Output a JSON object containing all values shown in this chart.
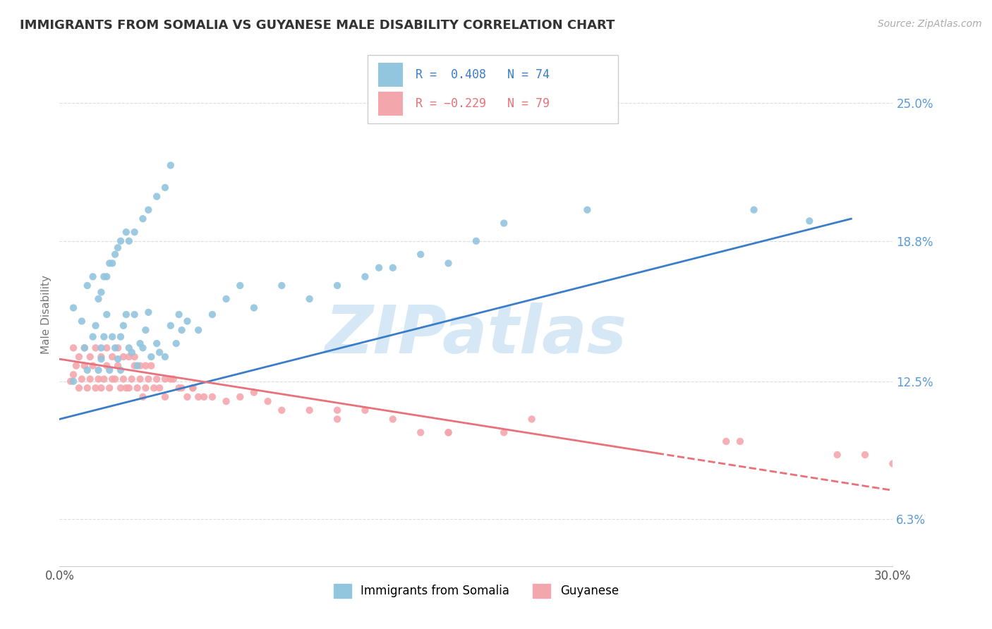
{
  "title": "IMMIGRANTS FROM SOMALIA VS GUYANESE MALE DISABILITY CORRELATION CHART",
  "source_text": "Source: ZipAtlas.com",
  "ylabel": "Male Disability",
  "xlim": [
    0.0,
    0.3
  ],
  "ylim": [
    0.042,
    0.268
  ],
  "yticks": [
    0.063,
    0.125,
    0.188,
    0.25
  ],
  "ytick_labels": [
    "6.3%",
    "12.5%",
    "18.8%",
    "25.0%"
  ],
  "xticks": [
    0.0,
    0.3
  ],
  "xtick_labels": [
    "0.0%",
    "30.0%"
  ],
  "legend_r1": "R =  0.408",
  "legend_n1": "N = 74",
  "legend_r2": "R = −0.229",
  "legend_n2": "N = 79",
  "series1_color": "#92c5de",
  "series2_color": "#f4a6ad",
  "trendline1_color": "#3a7dc9",
  "trendline2_color": "#e8717a",
  "watermark_color": "#d6e8f5",
  "background_color": "#ffffff",
  "grid_color": "#dddddd",
  "series1_label": "Immigrants from Somalia",
  "series2_label": "Guyanese",
  "ytick_color": "#5b9bd5",
  "xtick_color": "#555555",
  "scatter1_x": [
    0.005,
    0.009,
    0.01,
    0.012,
    0.013,
    0.014,
    0.015,
    0.015,
    0.016,
    0.017,
    0.018,
    0.019,
    0.02,
    0.021,
    0.022,
    0.022,
    0.023,
    0.024,
    0.025,
    0.026,
    0.027,
    0.028,
    0.029,
    0.03,
    0.031,
    0.032,
    0.033,
    0.035,
    0.036,
    0.038,
    0.04,
    0.042,
    0.044,
    0.046,
    0.05,
    0.055,
    0.06,
    0.065,
    0.07,
    0.08,
    0.09,
    0.1,
    0.11,
    0.115,
    0.12,
    0.13,
    0.14,
    0.15,
    0.16,
    0.19,
    0.005,
    0.008,
    0.01,
    0.012,
    0.014,
    0.016,
    0.018,
    0.02,
    0.022,
    0.024,
    0.025,
    0.027,
    0.03,
    0.032,
    0.035,
    0.038,
    0.04,
    0.043,
    0.25,
    0.27,
    0.015,
    0.017,
    0.019,
    0.021
  ],
  "scatter1_y": [
    0.125,
    0.14,
    0.13,
    0.145,
    0.15,
    0.13,
    0.135,
    0.14,
    0.145,
    0.155,
    0.13,
    0.145,
    0.14,
    0.135,
    0.13,
    0.145,
    0.15,
    0.155,
    0.14,
    0.138,
    0.155,
    0.132,
    0.142,
    0.14,
    0.148,
    0.156,
    0.136,
    0.142,
    0.138,
    0.136,
    0.15,
    0.142,
    0.148,
    0.152,
    0.148,
    0.155,
    0.162,
    0.168,
    0.158,
    0.168,
    0.162,
    0.168,
    0.172,
    0.176,
    0.176,
    0.182,
    0.178,
    0.188,
    0.196,
    0.202,
    0.158,
    0.152,
    0.168,
    0.172,
    0.162,
    0.172,
    0.178,
    0.182,
    0.188,
    0.192,
    0.188,
    0.192,
    0.198,
    0.202,
    0.208,
    0.212,
    0.222,
    0.155,
    0.202,
    0.197,
    0.165,
    0.172,
    0.178,
    0.185
  ],
  "scatter2_x": [
    0.004,
    0.005,
    0.006,
    0.007,
    0.008,
    0.009,
    0.01,
    0.011,
    0.012,
    0.013,
    0.014,
    0.015,
    0.016,
    0.017,
    0.018,
    0.019,
    0.02,
    0.021,
    0.022,
    0.023,
    0.024,
    0.025,
    0.026,
    0.027,
    0.028,
    0.029,
    0.03,
    0.031,
    0.032,
    0.034,
    0.036,
    0.038,
    0.04,
    0.043,
    0.046,
    0.048,
    0.05,
    0.055,
    0.06,
    0.065,
    0.07,
    0.075,
    0.08,
    0.09,
    0.1,
    0.11,
    0.12,
    0.13,
    0.14,
    0.16,
    0.005,
    0.007,
    0.009,
    0.011,
    0.013,
    0.015,
    0.017,
    0.019,
    0.021,
    0.023,
    0.025,
    0.027,
    0.029,
    0.031,
    0.033,
    0.035,
    0.038,
    0.041,
    0.044,
    0.048,
    0.052,
    0.1,
    0.14,
    0.17,
    0.24,
    0.245,
    0.28,
    0.29,
    0.3
  ],
  "scatter2_y": [
    0.125,
    0.128,
    0.132,
    0.122,
    0.126,
    0.132,
    0.122,
    0.126,
    0.132,
    0.122,
    0.126,
    0.122,
    0.126,
    0.132,
    0.122,
    0.126,
    0.126,
    0.132,
    0.122,
    0.126,
    0.122,
    0.122,
    0.126,
    0.132,
    0.122,
    0.126,
    0.118,
    0.122,
    0.126,
    0.122,
    0.122,
    0.118,
    0.126,
    0.122,
    0.118,
    0.122,
    0.118,
    0.118,
    0.116,
    0.118,
    0.12,
    0.116,
    0.112,
    0.112,
    0.108,
    0.112,
    0.108,
    0.102,
    0.102,
    0.102,
    0.14,
    0.136,
    0.14,
    0.136,
    0.14,
    0.136,
    0.14,
    0.136,
    0.14,
    0.136,
    0.136,
    0.136,
    0.132,
    0.132,
    0.132,
    0.126,
    0.126,
    0.126,
    0.122,
    0.122,
    0.118,
    0.112,
    0.102,
    0.108,
    0.098,
    0.098,
    0.092,
    0.092,
    0.088
  ],
  "trendline1_x": [
    0.0,
    0.285
  ],
  "trendline1_y": [
    0.108,
    0.198
  ],
  "trendline2_x": [
    0.0,
    0.3
  ],
  "trendline2_y": [
    0.135,
    0.076
  ],
  "trendline2_dashed_start_x": 0.215,
  "trendline2_solid_end_x": 0.215
}
